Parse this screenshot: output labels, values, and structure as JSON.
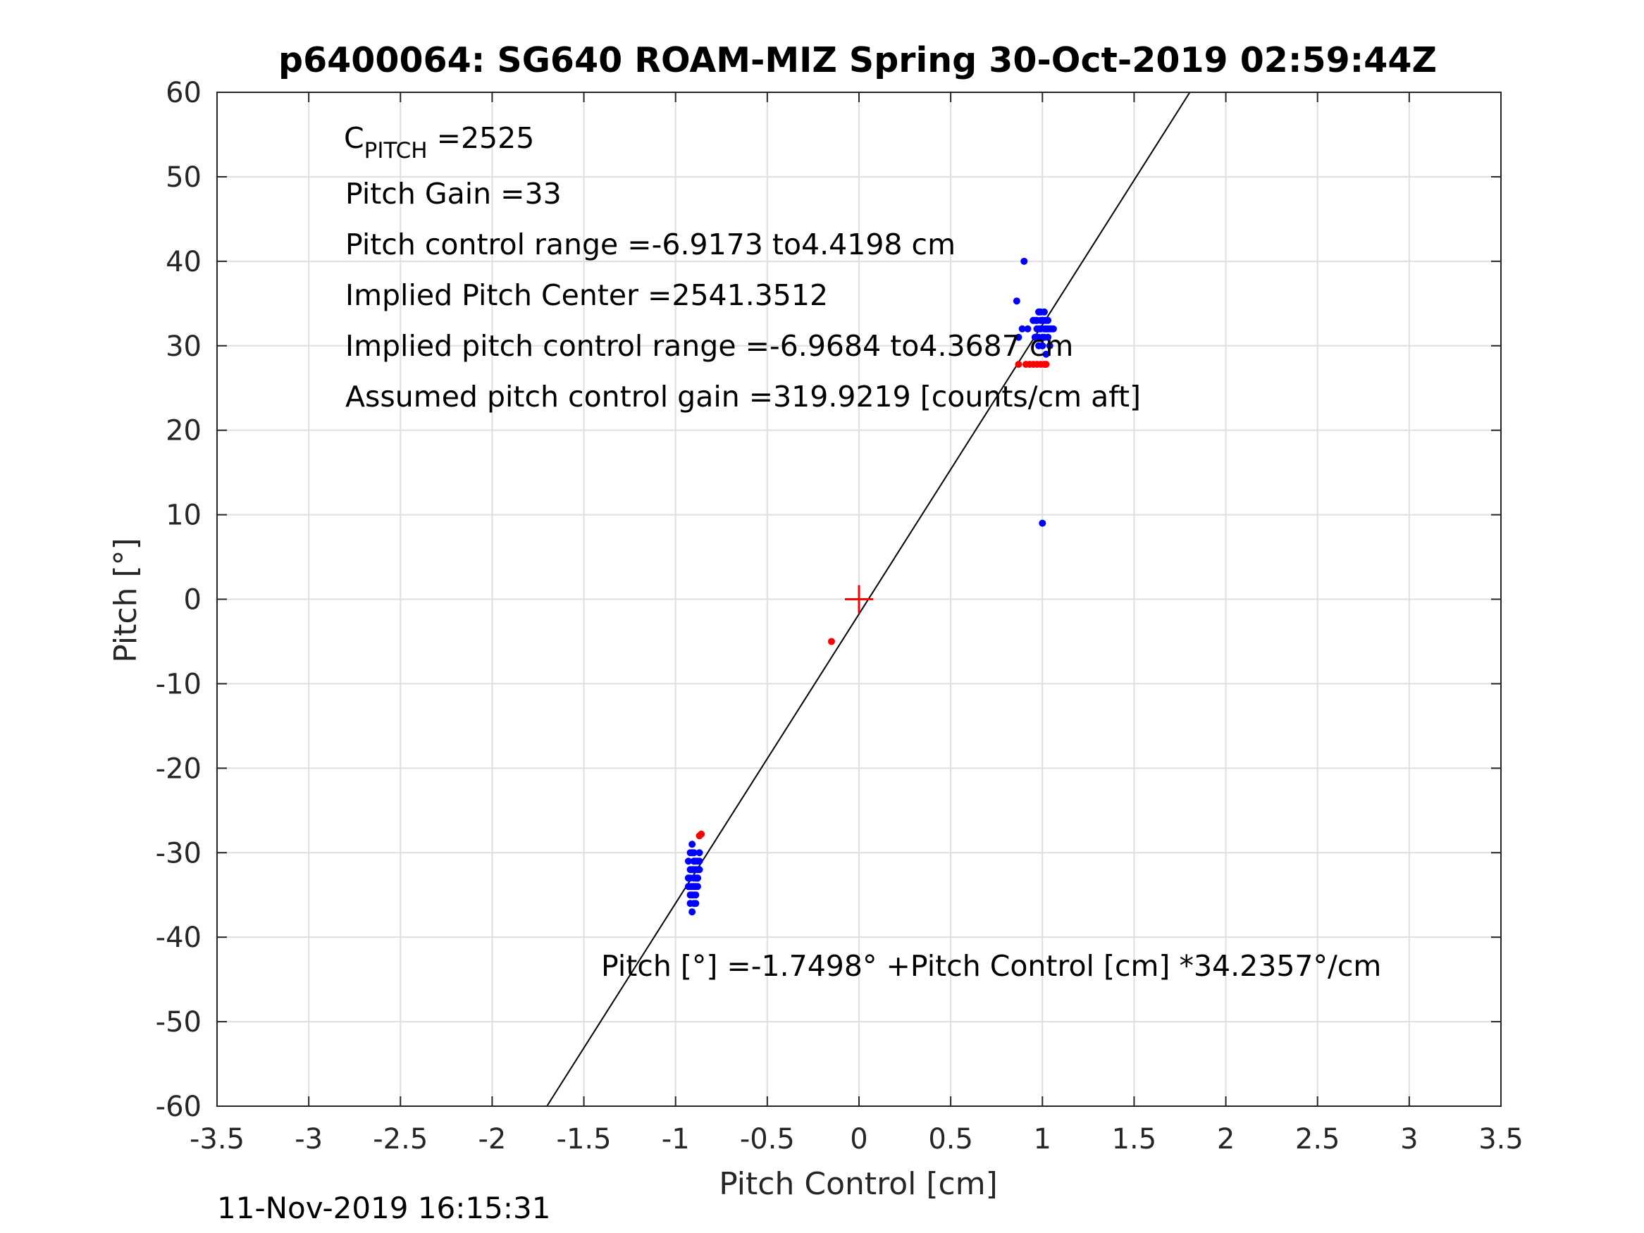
{
  "chart_data": {
    "type": "scatter",
    "title": "p6400064: SG640 ROAM-MIZ Spring 30-Oct-2019 02:59:44Z",
    "xlabel": "Pitch Control [cm]",
    "ylabel": "Pitch [°]",
    "xlim": [
      -3.5,
      3.5
    ],
    "ylim": [
      -60,
      60
    ],
    "x_ticks": [
      -3.5,
      -3,
      -2.5,
      -2,
      -1.5,
      -1,
      -0.5,
      0,
      0.5,
      1,
      1.5,
      2,
      2.5,
      3,
      3.5
    ],
    "x_tick_labels": [
      "-3.5",
      "-3",
      "-2.5",
      "-2",
      "-1.5",
      "-1",
      "-0.5",
      "0",
      "0.5",
      "1",
      "1.5",
      "2",
      "2.5",
      "3",
      "3.5"
    ],
    "y_ticks": [
      60,
      50,
      40,
      30,
      20,
      10,
      0,
      -10,
      -20,
      -30,
      -40,
      -50,
      -60
    ],
    "y_tick_labels": [
      "60",
      "50",
      "40",
      "30",
      "20",
      "10",
      "0",
      "-10",
      "-20",
      "-30",
      "-40",
      "-50",
      "-60"
    ],
    "grid": true,
    "annotations": {
      "c_pitch_main": "C",
      "c_pitch_sub": "PITCH",
      "c_pitch_value": " =2525",
      "pitch_gain": "Pitch Gain =33",
      "pitch_control_range": "Pitch control range =-6.9173 to4.4198 cm",
      "implied_center": "Implied Pitch Center =2541.3512",
      "implied_range": "Implied pitch control range =-6.9684 to4.3687 cm",
      "assumed_gain": "Assumed pitch control gain =319.9219 [counts/cm aft]",
      "fit_equation": "Pitch [°] =-1.7498° +Pitch Control [cm] *34.2357°/cm"
    },
    "fit_line": {
      "intercept": -1.7498,
      "slope": 34.2357
    },
    "center_marker": {
      "x": 0,
      "y": 0,
      "color": "#ff0000"
    },
    "series": [
      {
        "color": "#0000ff",
        "x": [
          -0.93,
          -0.92,
          -0.91,
          -0.9,
          -0.89,
          -0.88,
          -0.87,
          -0.93,
          -0.92,
          -0.9,
          -0.89,
          -0.88,
          -0.91,
          -0.9,
          -0.92,
          -0.89,
          -0.88,
          -0.93,
          -0.91,
          -0.9,
          -0.87,
          -0.89,
          -0.92,
          -0.88,
          -0.9,
          -0.91,
          -0.93,
          -0.89,
          -0.9,
          -0.88,
          -0.91,
          -0.92,
          -0.9,
          -0.89,
          -0.87,
          -0.9,
          -0.92,
          -0.91,
          -0.89,
          -0.88,
          0.9,
          0.95,
          0.97,
          0.98,
          0.99,
          1.0,
          1.01,
          1.02,
          1.03,
          1.05,
          0.96,
          0.97,
          0.98,
          0.99,
          1.0,
          1.01,
          1.02,
          1.04,
          0.97,
          0.98,
          1.0,
          1.01,
          1.03,
          0.99,
          1.0,
          1.02,
          0.98,
          0.96,
          1.01,
          0.95,
          0.86,
          0.89,
          0.87,
          1.0,
          1.02,
          0.99,
          0.97,
          1.04,
          1.03,
          0.98,
          1.01,
          1.0,
          0.96,
          0.92,
          1.06,
          1.03
        ],
        "y": [
          -33,
          -32,
          -34,
          -31,
          -35,
          -33,
          -30,
          -31,
          -36,
          -32,
          -33,
          -34,
          -30,
          -35,
          -33,
          -32,
          -31,
          -34,
          -29,
          -36,
          -31,
          -33,
          -35,
          -32,
          -34,
          -37,
          -33,
          -31,
          -30,
          -33,
          -32,
          -34,
          -31,
          -36,
          -32,
          -33,
          -30,
          -35,
          -34,
          -33,
          40,
          33,
          32,
          31,
          34,
          30,
          33,
          32,
          31,
          32,
          31,
          33,
          34,
          32,
          30,
          31,
          33,
          32,
          33,
          32,
          31,
          34,
          33,
          32,
          33,
          32,
          30,
          31,
          32,
          33,
          35.3,
          32,
          31,
          9,
          29,
          33,
          31,
          30,
          32,
          34,
          31,
          33,
          33,
          32,
          32,
          31
        ]
      },
      {
        "color": "#ff0000",
        "x": [
          -0.87,
          -0.86,
          -0.15,
          0.87,
          0.91,
          0.93,
          0.95,
          0.97,
          0.99,
          1.01,
          1.02
        ],
        "y": [
          -28,
          -27.8,
          -5,
          27.8,
          27.8,
          27.8,
          27.8,
          27.8,
          27.8,
          27.8,
          27.8
        ]
      }
    ]
  },
  "footer": {
    "timestamp": "11-Nov-2019 16:15:31"
  }
}
